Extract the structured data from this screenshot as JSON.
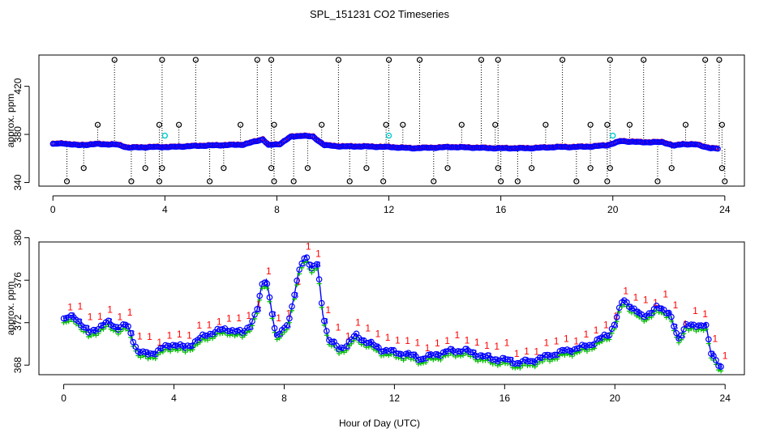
{
  "chart_data": [
    {
      "type": "scatter",
      "title": "SPL_151231  CO2 Timeseries",
      "ylabel": "approx. ppm",
      "xlabel": "",
      "xlim": [
        -0.5,
        24.7
      ],
      "ylim": [
        337,
        446
      ],
      "x_ticks": [
        0,
        4,
        8,
        12,
        16,
        20,
        24
      ],
      "x_tick_labels": [
        "0",
        "4",
        "8",
        "12",
        "16",
        "20",
        "24"
      ],
      "y_ticks": [
        340,
        380,
        420
      ],
      "y_tick_labels": [
        "340",
        "380",
        "420"
      ],
      "grid": false,
      "baseline_profile": {
        "hours": [
          0,
          0.4,
          0.9,
          1.6,
          2.3,
          2.7,
          3.6,
          4.2,
          5.2,
          6.0,
          6.8,
          7.2,
          7.5,
          7.7,
          8.1,
          8.5,
          8.9,
          9.3,
          9.7,
          10.3,
          11.0,
          12.0,
          12.8,
          13.7,
          14.2,
          15.0,
          15.8,
          16.4,
          17.0,
          18.0,
          18.6,
          19.3,
          19.8,
          20.3,
          20.6,
          21.0,
          21.8,
          22.2,
          22.5,
          23.0,
          23.5,
          23.8
        ],
        "ppm": [
          372,
          372.5,
          371,
          372,
          371.5,
          369,
          369.5,
          369.5,
          370.5,
          371,
          371.5,
          374,
          376,
          371,
          372,
          378,
          379,
          378,
          371,
          370,
          370,
          369.5,
          368.5,
          369,
          369.5,
          369,
          368.5,
          368.5,
          368.5,
          369.5,
          369.5,
          370,
          371,
          374.5,
          374,
          373.5,
          373.5,
          370.5,
          372,
          371.5,
          368.5,
          368
        ]
      },
      "upper_outliers": {
        "hours": [
          1.6,
          2.2,
          3.8,
          3.9,
          4.5,
          5.1,
          6.7,
          7.3,
          7.8,
          7.9,
          9.6,
          10.2,
          11.9,
          12.0,
          12.5,
          13.1,
          14.6,
          15.3,
          15.8,
          15.9,
          17.6,
          18.2,
          19.2,
          19.8,
          19.9,
          20.6,
          21.1,
          22.6,
          23.3,
          23.8,
          23.9
        ],
        "ppm": [
          388,
          442,
          388,
          442,
          388,
          442,
          388,
          442,
          442,
          388,
          388,
          442,
          388,
          442,
          388,
          442,
          388,
          442,
          388,
          442,
          388,
          442,
          388,
          388,
          442,
          388,
          442,
          388,
          442,
          442,
          388
        ]
      },
      "lower_outliers": {
        "hours": [
          0.5,
          1.1,
          2.8,
          3.3,
          3.8,
          3.9,
          5.6,
          6.1,
          7.8,
          7.9,
          8.6,
          9.1,
          10.6,
          11.2,
          11.8,
          13.6,
          14.1,
          15.9,
          16.0,
          16.6,
          17.1,
          18.7,
          19.2,
          19.8,
          19.9,
          21.6,
          22.1,
          23.9,
          24.0
        ],
        "ppm": [
          341,
          352,
          341,
          352,
          341,
          352,
          341,
          352,
          352,
          341,
          341,
          352,
          341,
          352,
          341,
          341,
          352,
          352,
          341,
          341,
          352,
          341,
          352,
          341,
          352,
          341,
          352,
          352,
          341
        ]
      },
      "cyan_points": {
        "hours": [
          4.0,
          12.0,
          20.0
        ],
        "ppm": [
          379,
          379,
          379
        ]
      }
    },
    {
      "type": "scatter",
      "title": "",
      "xlabel": "Hour of Day (UTC)",
      "ylabel": "approx. ppm",
      "xlim": [
        -0.9,
        24.7
      ],
      "ylim": [
        367.1,
        379.6
      ],
      "x_ticks": [
        0,
        4,
        8,
        12,
        16,
        20,
        24
      ],
      "x_tick_labels": [
        "0",
        "4",
        "8",
        "12",
        "16",
        "20",
        "24"
      ],
      "y_ticks": [
        368,
        372,
        376,
        380
      ],
      "y_tick_labels": [
        "368",
        "372",
        "376",
        "380"
      ],
      "grid": false,
      "legend": "none",
      "series": [
        {
          "name": "1",
          "color": "#ff0000",
          "offset_ppm": 0.6
        },
        {
          "name": "3",
          "color": "#0000ff",
          "offset_ppm": 0.0
        },
        {
          "name": "o",
          "color": "#0000ff",
          "offset_ppm": 0.0
        },
        {
          "name": "+",
          "color": "#00bb00",
          "offset_ppm": -0.4
        }
      ],
      "profile": {
        "hours": [
          0,
          0.4,
          0.9,
          1.3,
          1.6,
          2.0,
          2.3,
          2.5,
          2.7,
          3.0,
          3.3,
          3.6,
          4.0,
          4.4,
          5.0,
          5.5,
          6.0,
          6.5,
          6.8,
          7.0,
          7.2,
          7.35,
          7.5,
          7.7,
          8.0,
          8.2,
          8.4,
          8.6,
          8.8,
          9.0,
          9.2,
          9.4,
          9.6,
          9.8,
          10.0,
          10.3,
          10.6,
          11.0,
          11.5,
          12.0,
          12.5,
          13.0,
          13.5,
          14.0,
          14.5,
          15.0,
          15.5,
          16.0,
          16.5,
          17.0,
          17.5,
          18.0,
          18.5,
          19.0,
          19.5,
          19.8,
          20.0,
          20.3,
          20.6,
          21.0,
          21.5,
          22.0,
          22.3,
          22.6,
          23.0,
          23.3,
          23.5,
          23.8
        ],
        "ppm": [
          372.3,
          372.6,
          371.0,
          371.6,
          372.0,
          371.5,
          371.8,
          370.5,
          369.3,
          369.0,
          369.2,
          369.6,
          370.0,
          369.6,
          370.6,
          371.2,
          371.4,
          371.0,
          372.0,
          373.0,
          375.5,
          376.2,
          374.0,
          370.5,
          371.5,
          372.5,
          375.0,
          377.5,
          378.4,
          377.0,
          377.5,
          373.0,
          370.5,
          370.0,
          369.5,
          370.0,
          370.8,
          370.2,
          369.5,
          369.2,
          369.0,
          368.6,
          369.0,
          369.3,
          369.4,
          369.0,
          368.6,
          368.5,
          368.2,
          368.4,
          368.8,
          369.2,
          369.5,
          369.8,
          370.5,
          371.0,
          372.0,
          374.2,
          373.5,
          372.5,
          373.4,
          373.0,
          370.2,
          372.0,
          371.5,
          372.0,
          369.0,
          367.8
        ]
      }
    }
  ]
}
